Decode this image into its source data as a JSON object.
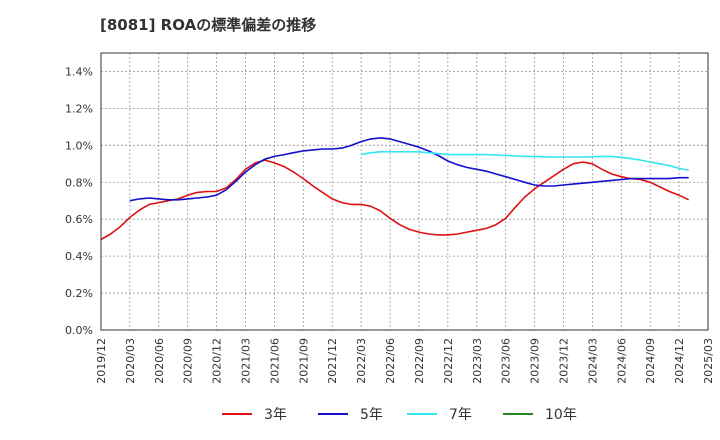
{
  "chart_data": {
    "type": "line",
    "title": "[8081]  ROAの標準偏差の推移",
    "xlabel": "",
    "ylabel": "",
    "x_ticks": [
      "2019/12",
      "2020/03",
      "2020/06",
      "2020/09",
      "2020/12",
      "2021/03",
      "2021/06",
      "2021/09",
      "2021/12",
      "2022/03",
      "2022/06",
      "2022/09",
      "2022/12",
      "2023/03",
      "2023/06",
      "2023/09",
      "2023/12",
      "2024/03",
      "2024/06",
      "2024/09",
      "2024/12",
      "2025/03"
    ],
    "y_ticks": [
      "0.0%",
      "0.2%",
      "0.4%",
      "0.6%",
      "0.8%",
      "1.0%",
      "1.2%",
      "1.4%"
    ],
    "ylim": [
      0,
      1.5
    ],
    "grid": true,
    "legend_position": "bottom",
    "series": [
      {
        "name": "3年",
        "color": "#dd1111",
        "points": [
          [
            "2019/12",
            0.49
          ],
          [
            "2020/01",
            0.52
          ],
          [
            "2020/02",
            0.56
          ],
          [
            "2020/03",
            0.61
          ],
          [
            "2020/04",
            0.65
          ],
          [
            "2020/05",
            0.68
          ],
          [
            "2020/06",
            0.69
          ],
          [
            "2020/07",
            0.7
          ],
          [
            "2020/08",
            0.71
          ],
          [
            "2020/09",
            0.73
          ],
          [
            "2020/10",
            0.745
          ],
          [
            "2020/11",
            0.75
          ],
          [
            "2020/12",
            0.75
          ],
          [
            "2021/01",
            0.77
          ],
          [
            "2021/02",
            0.815
          ],
          [
            "2021/03",
            0.87
          ],
          [
            "2021/04",
            0.905
          ],
          [
            "2021/05",
            0.92
          ],
          [
            "2021/06",
            0.905
          ],
          [
            "2021/07",
            0.885
          ],
          [
            "2021/08",
            0.855
          ],
          [
            "2021/09",
            0.82
          ],
          [
            "2021/10",
            0.78
          ],
          [
            "2021/11",
            0.745
          ],
          [
            "2021/12",
            0.71
          ],
          [
            "2022/01",
            0.69
          ],
          [
            "2022/02",
            0.68
          ],
          [
            "2022/03",
            0.68
          ],
          [
            "2022/04",
            0.67
          ],
          [
            "2022/05",
            0.645
          ],
          [
            "2022/06",
            0.605
          ],
          [
            "2022/07",
            0.57
          ],
          [
            "2022/08",
            0.545
          ],
          [
            "2022/09",
            0.53
          ],
          [
            "2022/10",
            0.52
          ],
          [
            "2022/11",
            0.515
          ],
          [
            "2022/12",
            0.515
          ],
          [
            "2023/01",
            0.52
          ],
          [
            "2023/02",
            0.53
          ],
          [
            "2023/03",
            0.54
          ],
          [
            "2023/04",
            0.55
          ],
          [
            "2023/05",
            0.57
          ],
          [
            "2023/06",
            0.605
          ],
          [
            "2023/07",
            0.665
          ],
          [
            "2023/08",
            0.72
          ],
          [
            "2023/09",
            0.765
          ],
          [
            "2023/10",
            0.8
          ],
          [
            "2023/11",
            0.835
          ],
          [
            "2023/12",
            0.87
          ],
          [
            "2024/01",
            0.9
          ],
          [
            "2024/02",
            0.91
          ],
          [
            "2024/03",
            0.9
          ],
          [
            "2024/04",
            0.87
          ],
          [
            "2024/05",
            0.845
          ],
          [
            "2024/06",
            0.83
          ],
          [
            "2024/07",
            0.82
          ],
          [
            "2024/08",
            0.815
          ],
          [
            "2024/09",
            0.8
          ],
          [
            "2024/10",
            0.775
          ],
          [
            "2024/11",
            0.75
          ],
          [
            "2024/12",
            0.73
          ],
          [
            "2025/01",
            0.705
          ]
        ]
      },
      {
        "name": "5年",
        "color": "#1111cc",
        "points": [
          [
            "2020/03",
            0.7
          ],
          [
            "2020/04",
            0.71
          ],
          [
            "2020/05",
            0.715
          ],
          [
            "2020/06",
            0.71
          ],
          [
            "2020/07",
            0.705
          ],
          [
            "2020/08",
            0.705
          ],
          [
            "2020/09",
            0.71
          ],
          [
            "2020/10",
            0.715
          ],
          [
            "2020/11",
            0.72
          ],
          [
            "2020/12",
            0.73
          ],
          [
            "2021/01",
            0.76
          ],
          [
            "2021/02",
            0.805
          ],
          [
            "2021/03",
            0.855
          ],
          [
            "2021/04",
            0.895
          ],
          [
            "2021/05",
            0.925
          ],
          [
            "2021/06",
            0.94
          ],
          [
            "2021/07",
            0.95
          ],
          [
            "2021/08",
            0.96
          ],
          [
            "2021/09",
            0.97
          ],
          [
            "2021/10",
            0.975
          ],
          [
            "2021/11",
            0.98
          ],
          [
            "2021/12",
            0.98
          ],
          [
            "2022/01",
            0.985
          ],
          [
            "2022/02",
            1.0
          ],
          [
            "2022/03",
            1.02
          ],
          [
            "2022/04",
            1.035
          ],
          [
            "2022/05",
            1.04
          ],
          [
            "2022/06",
            1.035
          ],
          [
            "2022/07",
            1.02
          ],
          [
            "2022/08",
            1.005
          ],
          [
            "2022/09",
            0.99
          ],
          [
            "2022/10",
            0.97
          ],
          [
            "2022/11",
            0.945
          ],
          [
            "2022/12",
            0.915
          ],
          [
            "2023/01",
            0.895
          ],
          [
            "2023/02",
            0.88
          ],
          [
            "2023/03",
            0.87
          ],
          [
            "2023/04",
            0.86
          ],
          [
            "2023/05",
            0.845
          ],
          [
            "2023/06",
            0.83
          ],
          [
            "2023/07",
            0.815
          ],
          [
            "2023/08",
            0.8
          ],
          [
            "2023/09",
            0.785
          ],
          [
            "2023/10",
            0.78
          ],
          [
            "2023/11",
            0.78
          ],
          [
            "2023/12",
            0.785
          ],
          [
            "2024/01",
            0.79
          ],
          [
            "2024/02",
            0.795
          ],
          [
            "2024/03",
            0.8
          ],
          [
            "2024/04",
            0.805
          ],
          [
            "2024/05",
            0.81
          ],
          [
            "2024/06",
            0.815
          ],
          [
            "2024/07",
            0.82
          ],
          [
            "2024/08",
            0.82
          ],
          [
            "2024/09",
            0.82
          ],
          [
            "2024/10",
            0.82
          ],
          [
            "2024/11",
            0.82
          ],
          [
            "2024/12",
            0.825
          ],
          [
            "2025/01",
            0.825
          ]
        ]
      },
      {
        "name": "7年",
        "color": "#33e6f0",
        "points": [
          [
            "2022/03",
            0.95
          ],
          [
            "2022/04",
            0.96
          ],
          [
            "2022/05",
            0.965
          ],
          [
            "2022/06",
            0.965
          ],
          [
            "2022/07",
            0.965
          ],
          [
            "2022/08",
            0.965
          ],
          [
            "2022/09",
            0.965
          ],
          [
            "2022/10",
            0.96
          ],
          [
            "2022/11",
            0.955
          ],
          [
            "2022/12",
            0.95
          ],
          [
            "2023/01",
            0.95
          ],
          [
            "2023/02",
            0.95
          ],
          [
            "2023/03",
            0.95
          ],
          [
            "2023/04",
            0.95
          ],
          [
            "2023/05",
            0.948
          ],
          [
            "2023/06",
            0.945
          ],
          [
            "2023/07",
            0.943
          ],
          [
            "2023/08",
            0.94
          ],
          [
            "2023/09",
            0.94
          ],
          [
            "2023/10",
            0.938
          ],
          [
            "2023/11",
            0.937
          ],
          [
            "2023/12",
            0.937
          ],
          [
            "2024/01",
            0.937
          ],
          [
            "2024/02",
            0.937
          ],
          [
            "2024/03",
            0.938
          ],
          [
            "2024/04",
            0.94
          ],
          [
            "2024/05",
            0.94
          ],
          [
            "2024/06",
            0.935
          ],
          [
            "2024/07",
            0.928
          ],
          [
            "2024/08",
            0.92
          ],
          [
            "2024/09",
            0.91
          ],
          [
            "2024/10",
            0.9
          ],
          [
            "2024/11",
            0.89
          ],
          [
            "2024/12",
            0.875
          ],
          [
            "2025/01",
            0.865
          ]
        ]
      },
      {
        "name": "10年",
        "color": "#228b22",
        "points": []
      }
    ]
  }
}
